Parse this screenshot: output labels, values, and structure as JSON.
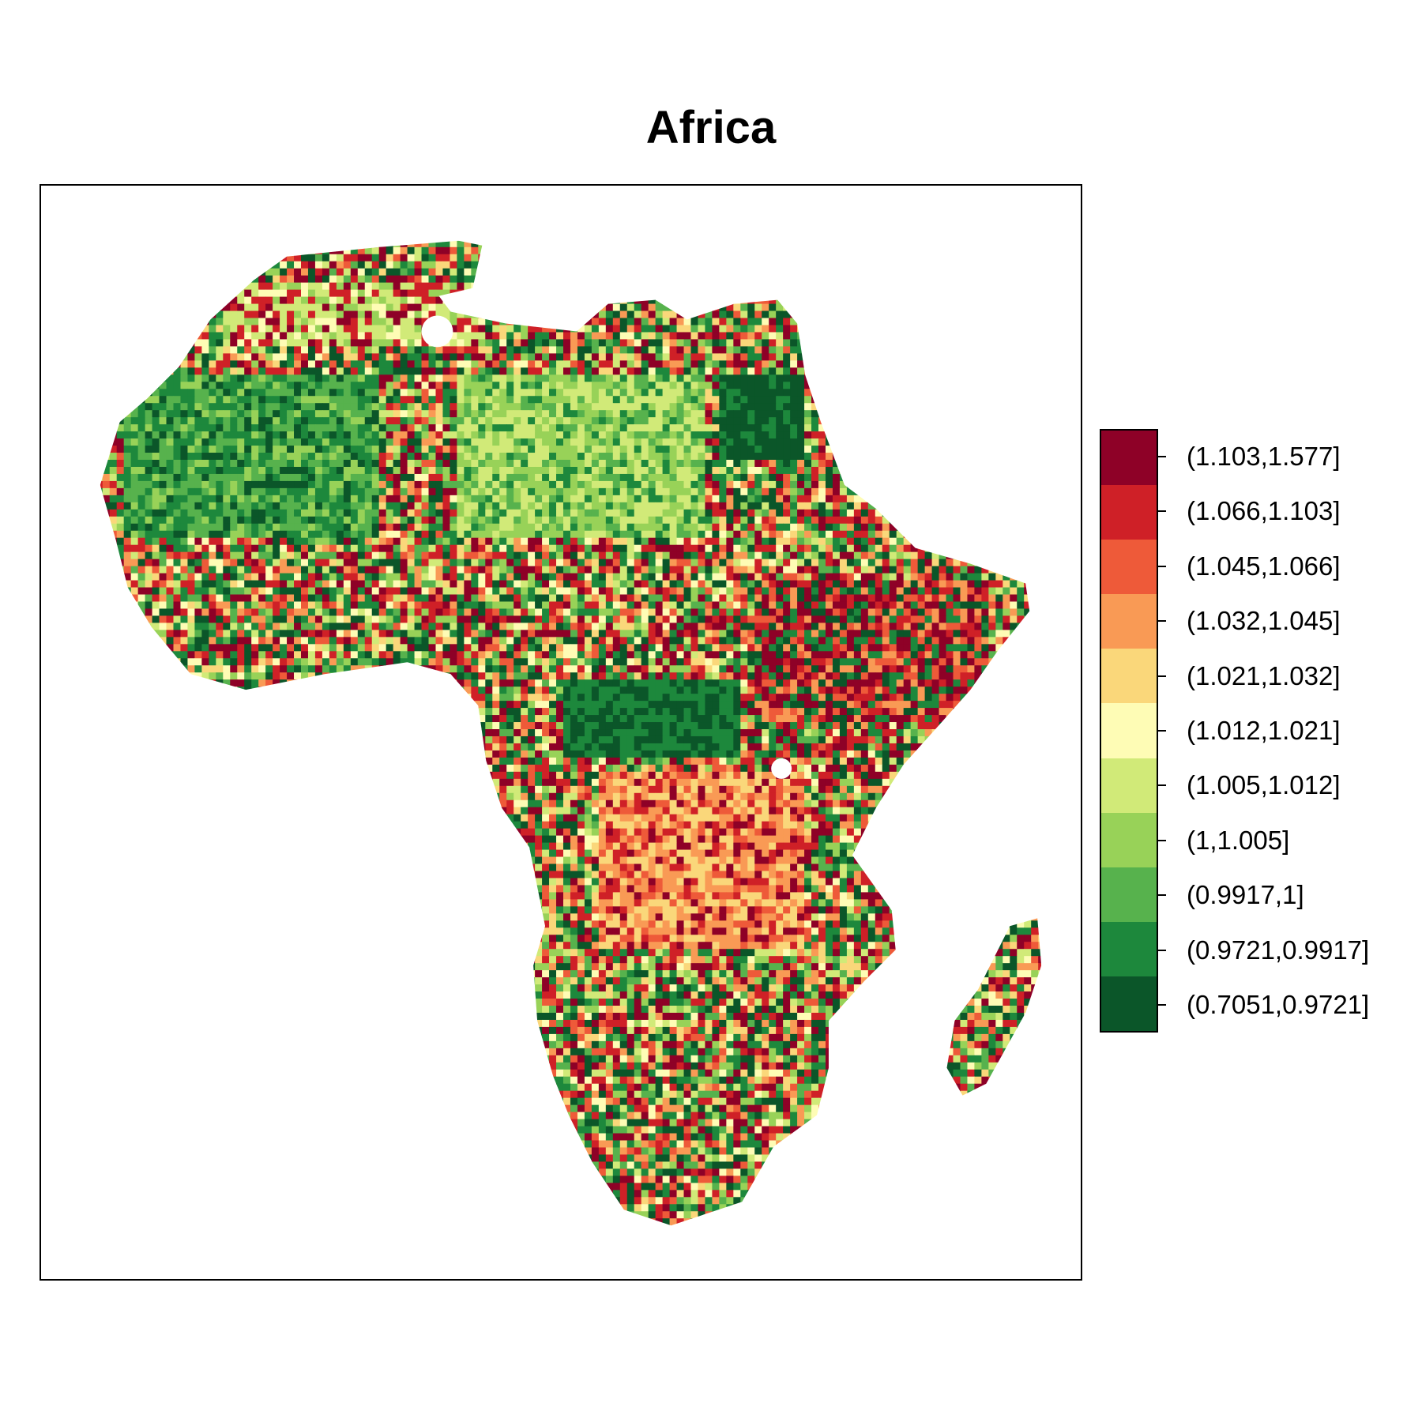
{
  "title": "Africa",
  "legend": {
    "classes": [
      {
        "label": "(1.103,1.577]",
        "color": "#8e0127"
      },
      {
        "label": "(1.066,1.103]",
        "color": "#cf2027"
      },
      {
        "label": "(1.045,1.066]",
        "color": "#ee5a39"
      },
      {
        "label": "(1.032,1.045]",
        "color": "#f99a55"
      },
      {
        "label": "(1.021,1.032]",
        "color": "#fad77a"
      },
      {
        "label": "(1.012,1.021]",
        "color": "#fefcb5"
      },
      {
        "label": "(1.005,1.012]",
        "color": "#d1ea78"
      },
      {
        "label": "(1,1.005]",
        "color": "#98d258"
      },
      {
        "label": "(0.9917,1]",
        "color": "#57b24d"
      },
      {
        "label": "(0.9721,0.9917]",
        "color": "#1d883c"
      },
      {
        "label": "(0.7051,0.9721]",
        "color": "#0b5629"
      }
    ]
  }
}
